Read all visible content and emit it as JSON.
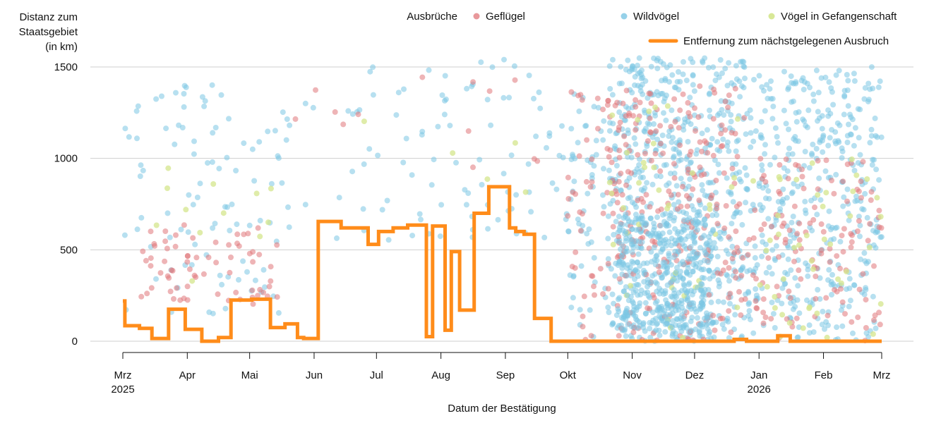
{
  "chart_data": {
    "type": "scatter",
    "title": "",
    "ylabel_lines": [
      "Distanz zum",
      "Staatsgebiet",
      "(in km)"
    ],
    "xlabel": "Datum der Bestätigung",
    "ylim": [
      0,
      1500
    ],
    "yticks": [
      0,
      500,
      1000,
      1500
    ],
    "grid": true,
    "legend_position": "top-right",
    "legend_title": "Ausbrüche",
    "x_domain": [
      "2025-03-01",
      "2026-03-01"
    ],
    "xticks": [
      {
        "date": "2025-03-01",
        "month": "Mrz",
        "year": "2025"
      },
      {
        "date": "2025-04-01",
        "month": "Apr",
        "year": ""
      },
      {
        "date": "2025-05-01",
        "month": "Mai",
        "year": ""
      },
      {
        "date": "2025-06-01",
        "month": "Jun",
        "year": ""
      },
      {
        "date": "2025-07-01",
        "month": "Jul",
        "year": ""
      },
      {
        "date": "2025-08-01",
        "month": "Aug",
        "year": ""
      },
      {
        "date": "2025-09-01",
        "month": "Sep",
        "year": ""
      },
      {
        "date": "2025-10-01",
        "month": "Okt",
        "year": ""
      },
      {
        "date": "2025-11-01",
        "month": "Nov",
        "year": ""
      },
      {
        "date": "2025-12-01",
        "month": "Dez",
        "year": ""
      },
      {
        "date": "2026-01-01",
        "month": "Jan",
        "year": "2026"
      },
      {
        "date": "2026-02-01",
        "month": "Feb",
        "year": ""
      },
      {
        "date": "2026-03-01",
        "month": "Mrz",
        "year": ""
      }
    ],
    "series": [
      {
        "name": "Geflügel",
        "kind": "scatter",
        "color": "#e0767a"
      },
      {
        "name": "Wildvögel",
        "kind": "scatter",
        "color": "#7cc6e4"
      },
      {
        "name": "Vögel in Gefangenschaft",
        "kind": "scatter",
        "color": "#d4e58c"
      },
      {
        "name": "Entfernung zum nächstgelegenen Ausbruch",
        "kind": "step-line",
        "color": "#ff8c1a",
        "x": [
          "2025-03-01",
          "2025-03-02",
          "2025-03-09",
          "2025-03-15",
          "2025-03-23",
          "2025-03-31",
          "2025-04-08",
          "2025-04-16",
          "2025-04-22",
          "2025-05-02",
          "2025-05-11",
          "2025-05-18",
          "2025-05-24",
          "2025-05-27",
          "2025-06-03",
          "2025-06-14",
          "2025-06-27",
          "2025-07-02",
          "2025-07-09",
          "2025-07-16",
          "2025-07-18",
          "2025-07-25",
          "2025-07-28",
          "2025-08-03",
          "2025-08-06",
          "2025-08-10",
          "2025-08-17",
          "2025-08-24",
          "2025-08-27",
          "2025-09-03",
          "2025-09-06",
          "2025-09-10",
          "2025-09-15",
          "2025-09-23",
          "2025-09-30",
          "2025-10-01",
          "2025-12-20",
          "2025-12-26",
          "2026-01-10",
          "2026-01-16",
          "2026-03-01"
        ],
        "y": [
          220,
          85,
          70,
          15,
          175,
          65,
          0,
          20,
          225,
          230,
          75,
          95,
          20,
          15,
          655,
          620,
          530,
          600,
          620,
          635,
          635,
          25,
          630,
          60,
          490,
          170,
          700,
          845,
          845,
          620,
          600,
          585,
          125,
          0,
          0,
          0,
          10,
          0,
          30,
          0,
          0
        ]
      }
    ]
  }
}
